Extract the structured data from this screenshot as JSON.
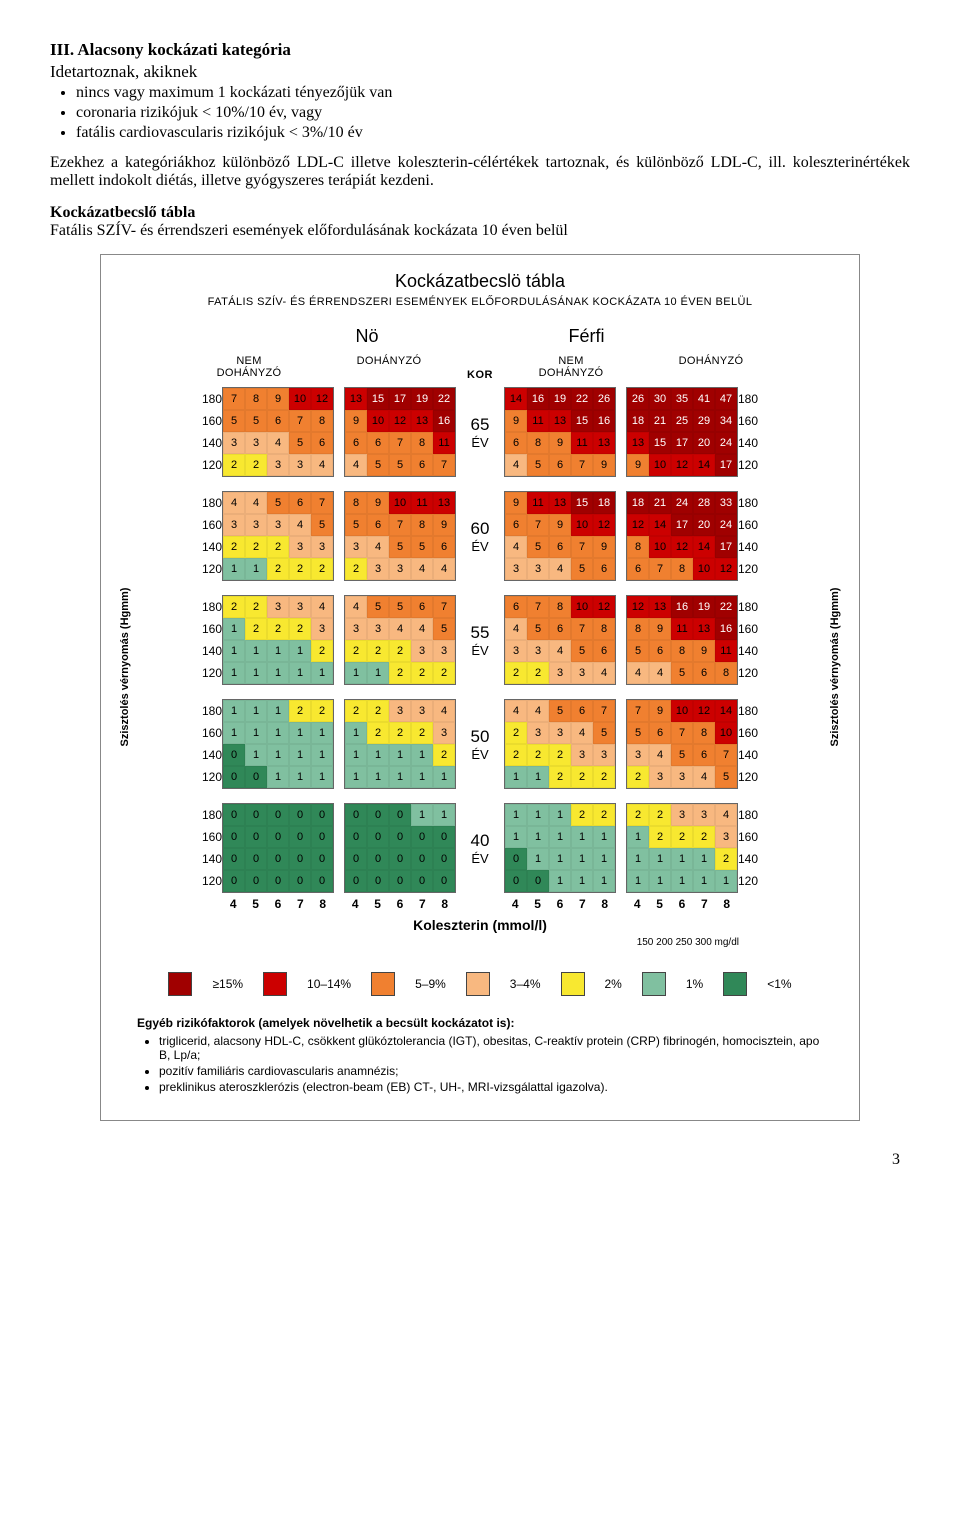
{
  "heading": "III. Alacsony kockázati kategória",
  "subheading": "Idetartoznak, akiknek",
  "bullets": [
    "nincs vagy maximum 1 kockázati tényezőjük van",
    "coronaria rizikójuk < 10%/10 év, vagy",
    "fatális cardiovascularis rizikójuk < 3%/10 év"
  ],
  "para": "Ezekhez a kategóriákhoz különböző LDL-C illetve koleszterin-célértékek tartoznak, és különböző LDL-C, ill. koleszterinértékek mellett indokolt diétás, illetve gyógyszeres terápiát kezdeni.",
  "table_heading": "Kockázatbecslő tábla",
  "table_sub": "Fatális SZÍV- és érrendszeri események előfordulásának kockázata 10 éven belül",
  "chart": {
    "title": "Kockázatbecslö tábla",
    "subtitle": "FATÁLIS SZÍV- ÉS ÉRRENDSZERI ESEMÉNYEK ELŐFORDULÁSÁNAK KOCKÁZATA  10 ÉVEN BELÜL",
    "gender": [
      "Nö",
      "Férfi"
    ],
    "smoking": [
      "NEM\nDOHÁNYZÓ",
      "DOHÁNYZÓ",
      "NEM\nDOHÁNYZÓ",
      "DOHÁNYZÓ"
    ],
    "kor": "KOR",
    "ylabel": "Szisztolés vérnyomás (Hgmm)",
    "ylabel_right": "Szisztolés vérnyomás (Hgmm)",
    "bp": [
      "180",
      "160",
      "140",
      "120"
    ],
    "chol_ticks": [
      "4",
      "5",
      "6",
      "7",
      "8"
    ],
    "chol_label": "Koleszterin (mmol/l)",
    "mgdl": "150   200   250   300 mg/dl",
    "ages": [
      "65",
      "60",
      "55",
      "50",
      "40"
    ],
    "ev": "ÉV",
    "colors": {
      "darkred": "#a00000",
      "red": "#cc0000",
      "redorange": "#e05020",
      "orange": "#f08030",
      "peach": "#f8b880",
      "yellow": "#f8e830",
      "teal": "#80c0a0",
      "green": "#308858"
    },
    "legend": [
      {
        "c": "darkred",
        "t": "≥15%"
      },
      {
        "c": "red",
        "t": "10–14%"
      },
      {
        "c": "orange",
        "t": "5–9%"
      },
      {
        "c": "peach",
        "t": "3–4%"
      },
      {
        "c": "yellow",
        "t": "2%"
      },
      {
        "c": "teal",
        "t": "1%"
      },
      {
        "c": "green",
        "t": "<1%"
      }
    ],
    "blocks": {
      "65": [
        [
          [
            7,
            8,
            9,
            10,
            12
          ],
          [
            5,
            5,
            6,
            7,
            8
          ],
          [
            3,
            3,
            4,
            5,
            6
          ],
          [
            2,
            2,
            3,
            3,
            4
          ]
        ],
        [
          [
            13,
            15,
            17,
            19,
            22
          ],
          [
            9,
            10,
            12,
            13,
            16
          ],
          [
            6,
            6,
            7,
            8,
            11
          ],
          [
            4,
            5,
            5,
            6,
            7
          ]
        ],
        [
          [
            14,
            16,
            19,
            22,
            26
          ],
          [
            9,
            11,
            13,
            15,
            16
          ],
          [
            6,
            8,
            9,
            11,
            13
          ],
          [
            4,
            5,
            6,
            7,
            9
          ]
        ],
        [
          [
            26,
            30,
            35,
            41,
            47
          ],
          [
            18,
            21,
            25,
            29,
            34
          ],
          [
            13,
            15,
            17,
            20,
            24
          ],
          [
            9,
            10,
            12,
            14,
            17
          ]
        ]
      ],
      "60": [
        [
          [
            4,
            4,
            5,
            6,
            7
          ],
          [
            3,
            3,
            3,
            4,
            5
          ],
          [
            2,
            2,
            2,
            3,
            3
          ],
          [
            1,
            1,
            2,
            2,
            2
          ]
        ],
        [
          [
            8,
            9,
            10,
            11,
            13
          ],
          [
            5,
            6,
            7,
            8,
            9
          ],
          [
            3,
            4,
            5,
            5,
            6
          ],
          [
            2,
            3,
            3,
            4,
            4
          ]
        ],
        [
          [
            9,
            11,
            13,
            15,
            18
          ],
          [
            6,
            7,
            9,
            10,
            12
          ],
          [
            4,
            5,
            6,
            7,
            9
          ],
          [
            3,
            3,
            4,
            5,
            6
          ]
        ],
        [
          [
            18,
            21,
            24,
            28,
            33
          ],
          [
            12,
            14,
            17,
            20,
            24
          ],
          [
            8,
            10,
            12,
            14,
            17
          ],
          [
            6,
            7,
            8,
            10,
            12
          ]
        ]
      ],
      "55": [
        [
          [
            2,
            2,
            3,
            3,
            4
          ],
          [
            1,
            2,
            2,
            2,
            3
          ],
          [
            1,
            1,
            1,
            1,
            2
          ],
          [
            1,
            1,
            1,
            1,
            1
          ]
        ],
        [
          [
            4,
            5,
            5,
            6,
            7
          ],
          [
            3,
            3,
            4,
            4,
            5
          ],
          [
            2,
            2,
            2,
            3,
            3
          ],
          [
            1,
            1,
            2,
            2,
            2
          ]
        ],
        [
          [
            6,
            7,
            8,
            10,
            12
          ],
          [
            4,
            5,
            6,
            7,
            8
          ],
          [
            3,
            3,
            4,
            5,
            6
          ],
          [
            2,
            2,
            3,
            3,
            4
          ]
        ],
        [
          [
            12,
            13,
            16,
            19,
            22
          ],
          [
            8,
            9,
            11,
            13,
            16
          ],
          [
            5,
            6,
            8,
            9,
            11
          ],
          [
            4,
            4,
            5,
            6,
            8
          ]
        ]
      ],
      "50": [
        [
          [
            1,
            1,
            1,
            2,
            2
          ],
          [
            1,
            1,
            1,
            1,
            1
          ],
          [
            0,
            1,
            1,
            1,
            1
          ],
          [
            0,
            0,
            1,
            1,
            1
          ]
        ],
        [
          [
            2,
            2,
            3,
            3,
            4
          ],
          [
            1,
            2,
            2,
            2,
            3
          ],
          [
            1,
            1,
            1,
            1,
            2
          ],
          [
            1,
            1,
            1,
            1,
            1
          ]
        ],
        [
          [
            4,
            4,
            5,
            6,
            7
          ],
          [
            2,
            3,
            3,
            4,
            5
          ],
          [
            2,
            2,
            2,
            3,
            3
          ],
          [
            1,
            1,
            2,
            2,
            2
          ]
        ],
        [
          [
            7,
            9,
            10,
            12,
            14
          ],
          [
            5,
            6,
            7,
            8,
            10
          ],
          [
            3,
            4,
            5,
            6,
            7
          ],
          [
            2,
            3,
            3,
            4,
            5
          ]
        ]
      ],
      "40": [
        [
          [
            0,
            0,
            0,
            0,
            0
          ],
          [
            0,
            0,
            0,
            0,
            0
          ],
          [
            0,
            0,
            0,
            0,
            0
          ],
          [
            0,
            0,
            0,
            0,
            0
          ]
        ],
        [
          [
            0,
            0,
            0,
            1,
            1
          ],
          [
            0,
            0,
            0,
            0,
            0
          ],
          [
            0,
            0,
            0,
            0,
            0
          ],
          [
            0,
            0,
            0,
            0,
            0
          ]
        ],
        [
          [
            1,
            1,
            1,
            2,
            2
          ],
          [
            1,
            1,
            1,
            1,
            1
          ],
          [
            0,
            1,
            1,
            1,
            1
          ],
          [
            0,
            0,
            1,
            1,
            1
          ]
        ],
        [
          [
            2,
            2,
            3,
            3,
            4
          ],
          [
            1,
            2,
            2,
            2,
            3
          ],
          [
            1,
            1,
            1,
            1,
            2
          ],
          [
            1,
            1,
            1,
            1,
            1
          ]
        ]
      ]
    },
    "foot_title": "Egyéb rizikófaktorok (amelyek növelhetik a becsült kockázatot is):",
    "foot_items": [
      "triglicerid, alacsony HDL-C, csökkent glükóztolerancia (IGT), obesitas, C-reaktív protein (CRP) fibrinogén, homocisztein, apo B, Lp/a;",
      "pozitív familiáris cardiovascularis anamnézis;",
      "preklinikus ateroszklerózis (electron-beam (EB) CT-, UH-, MRI-vizsgálattal igazolva)."
    ]
  },
  "page_num": "3"
}
